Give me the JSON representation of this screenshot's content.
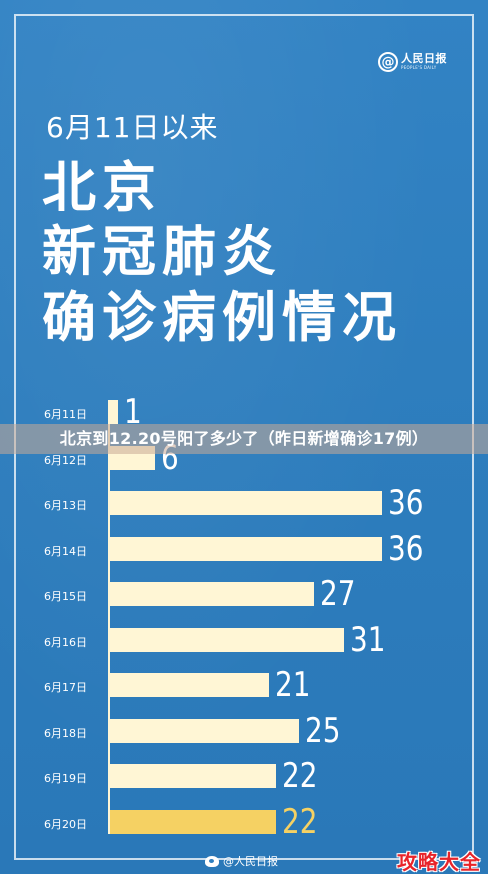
{
  "logo": {
    "symbol": "@",
    "name": "人民日报",
    "sub": "PEOPLE'S DAILY"
  },
  "header": {
    "date_range": "6月11日以来",
    "title_lines": [
      "北京",
      "新冠肺炎",
      "确诊病例情况"
    ]
  },
  "banner": {
    "text": "北京到12.20号阳了多少了（昨日新增确诊17例）"
  },
  "colors": {
    "background": "#2f7fc0",
    "bar": "#fff6d5",
    "highlight": "#f5d163",
    "watermark": "#e8242a"
  },
  "chart_data": {
    "type": "bar",
    "orientation": "horizontal",
    "categories": [
      "6月11日",
      "6月12日",
      "6月13日",
      "6月14日",
      "6月15日",
      "6月16日",
      "6月17日",
      "6月18日",
      "6月19日",
      "6月20日"
    ],
    "values": [
      1,
      6,
      36,
      36,
      27,
      31,
      21,
      25,
      22,
      22
    ],
    "highlight_index": 9,
    "xlim": [
      0,
      36
    ]
  },
  "footer": {
    "source": "@人民日报"
  },
  "watermark": {
    "text": "攻略大全"
  }
}
